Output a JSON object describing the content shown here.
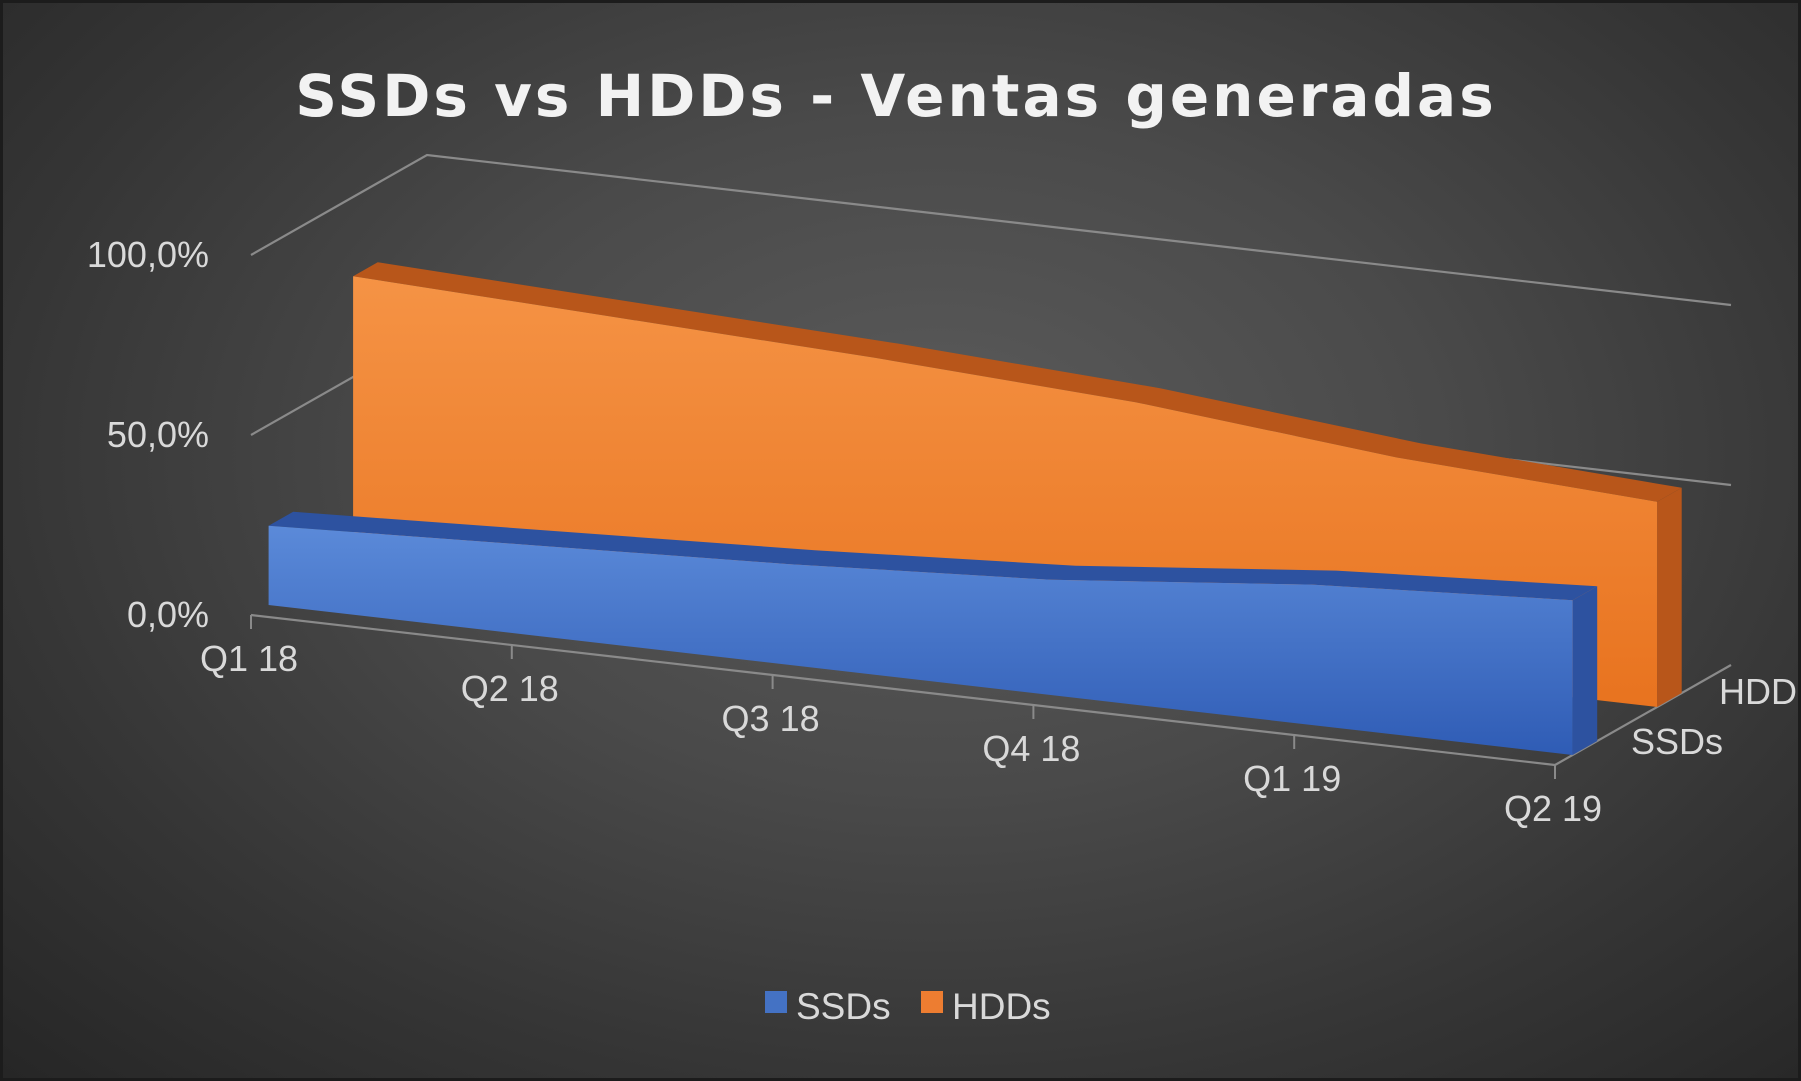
{
  "chart_data": {
    "type": "area",
    "title": "SSDs vs HDDs - Ventas generadas",
    "categories": [
      "Q1 18",
      "Q2 18",
      "Q3 18",
      "Q4 18",
      "Q1 19",
      "Q2 19"
    ],
    "series": [
      {
        "name": "SSDs",
        "values": [
          0.22,
          0.25,
          0.28,
          0.32,
          0.39,
          0.43
        ],
        "color": "#4472c4"
      },
      {
        "name": "HDDs",
        "values": [
          0.78,
          0.75,
          0.72,
          0.68,
          0.61,
          0.57
        ],
        "color": "#ed7d31"
      }
    ],
    "y_ticks": [
      "0,0%",
      "50,0%",
      "100,0%"
    ],
    "ylim": [
      0,
      1
    ],
    "depth_labels": [
      "SSDs",
      "HDDs"
    ],
    "legend": {
      "position": "bottom",
      "items": [
        "SSDs",
        "HDDs"
      ]
    },
    "grid": true,
    "projection": "3d"
  }
}
